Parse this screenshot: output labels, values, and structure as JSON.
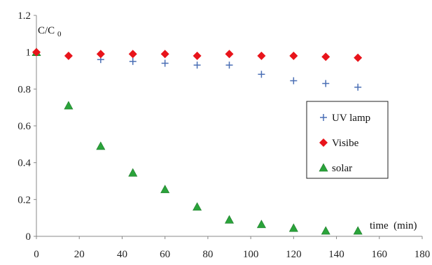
{
  "chart_data": {
    "type": "scatter",
    "title": "",
    "xlabel": "time  (min)",
    "ylabel": "C/C0",
    "ylabel_main": "C/C",
    "ylabel_sub": "0",
    "xlim": [
      0,
      180
    ],
    "ylim": [
      0,
      1.2
    ],
    "xticks": [
      0,
      20,
      40,
      60,
      80,
      100,
      120,
      140,
      160,
      180
    ],
    "yticks": [
      0,
      0.2,
      0.4,
      0.6,
      0.8,
      1,
      1.2
    ],
    "xtick_labels": [
      "0",
      "20",
      "40",
      "60",
      "80",
      "100",
      "120",
      "140",
      "160",
      "180"
    ],
    "ytick_labels": [
      "0",
      "0.2",
      "0.4",
      "0.6",
      "0.8",
      "1",
      "1.2"
    ],
    "grid": false,
    "legend_position": "right",
    "series": [
      {
        "name": "UV lamp",
        "marker": "plus",
        "color": "#4a6fb5",
        "x": [
          0,
          15,
          30,
          45,
          60,
          75,
          90,
          105,
          120,
          135,
          150
        ],
        "y": [
          1.0,
          0.98,
          0.96,
          0.95,
          0.94,
          0.93,
          0.93,
          0.88,
          0.845,
          0.83,
          0.81
        ]
      },
      {
        "name": "Visibe",
        "marker": "diamond",
        "color": "#e8141b",
        "x": [
          0,
          15,
          30,
          45,
          60,
          75,
          90,
          105,
          120,
          135,
          150
        ],
        "y": [
          1.0,
          0.98,
          0.99,
          0.99,
          0.99,
          0.98,
          0.99,
          0.98,
          0.98,
          0.975,
          0.97
        ]
      },
      {
        "name": "solar",
        "marker": "triangle",
        "color": "#2aa33a",
        "x": [
          0,
          15,
          30,
          45,
          60,
          75,
          90,
          105,
          120,
          135,
          150
        ],
        "y": [
          1.0,
          0.71,
          0.49,
          0.345,
          0.255,
          0.16,
          0.09,
          0.065,
          0.045,
          0.03,
          0.03
        ]
      }
    ]
  }
}
